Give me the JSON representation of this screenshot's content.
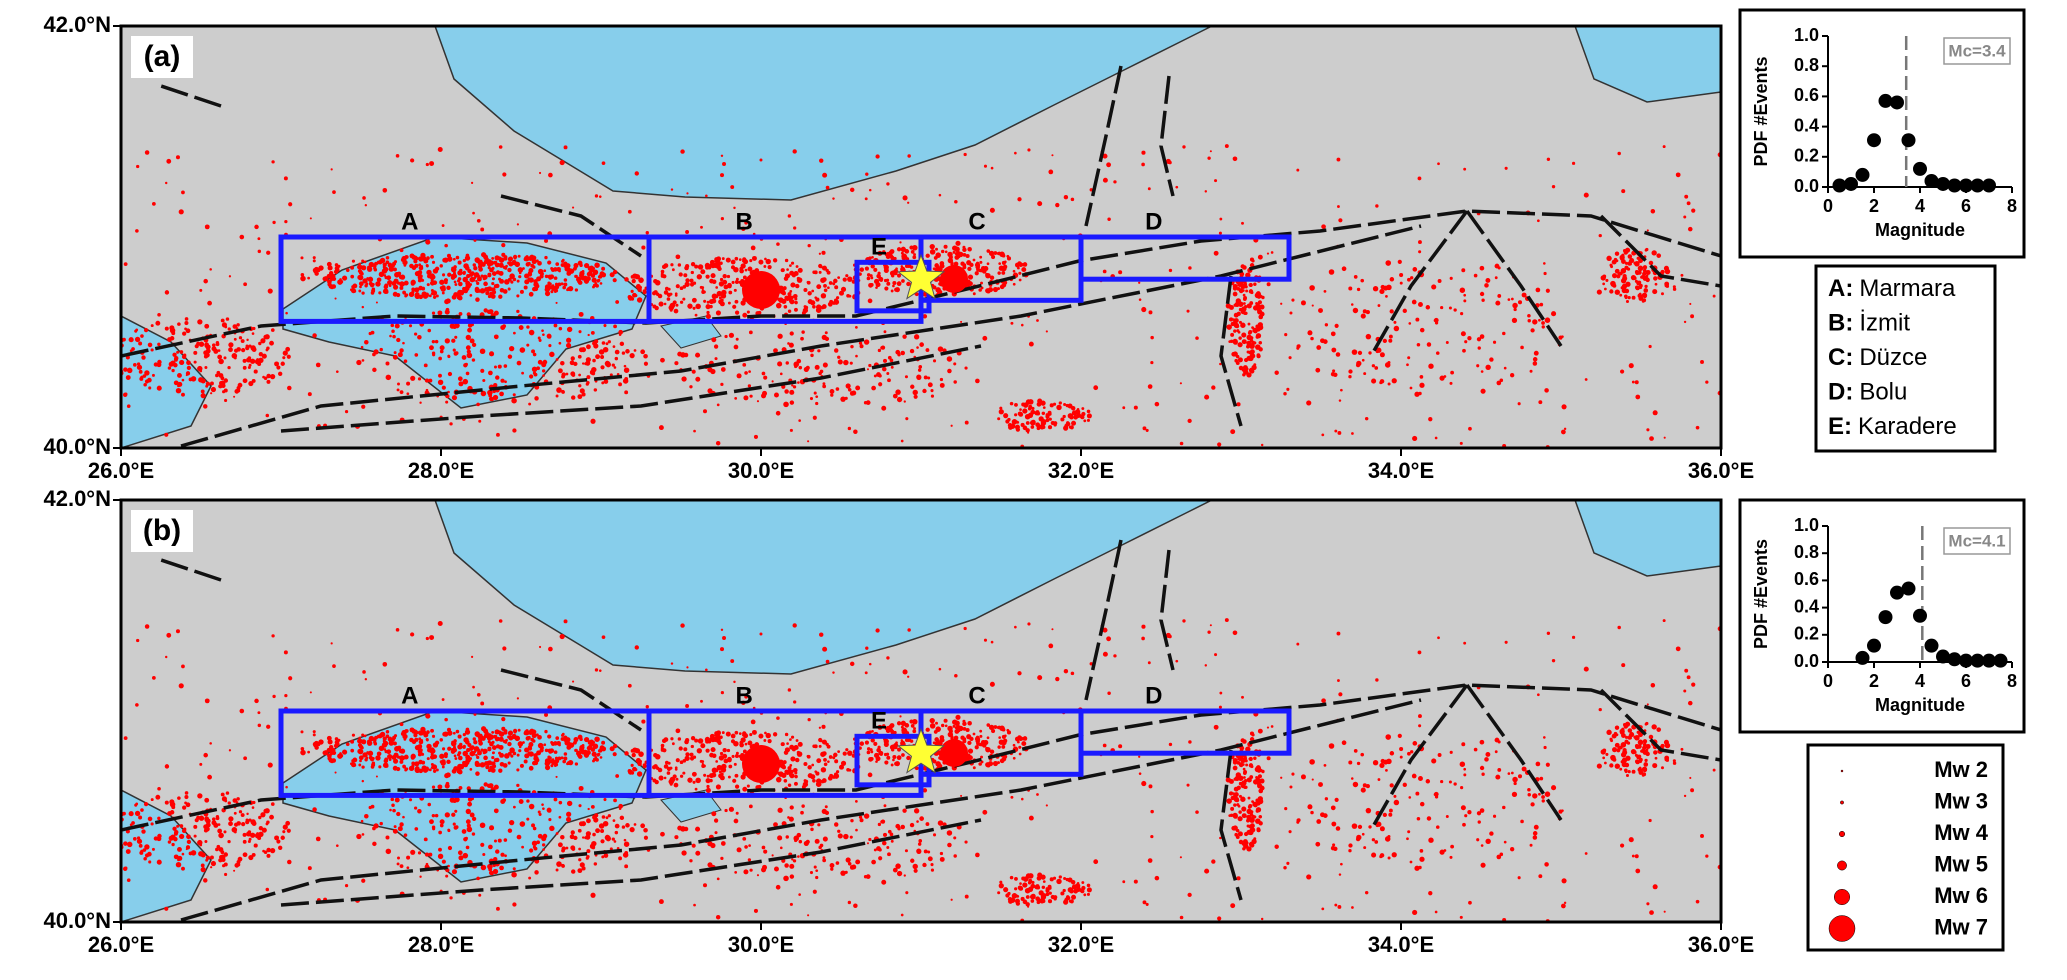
{
  "map": {
    "xlim": [
      26,
      36
    ],
    "ylim": [
      40,
      42
    ],
    "xticks": [
      {
        "value": 26,
        "label": "26.0°E"
      },
      {
        "value": 28,
        "label": "28.0°E"
      },
      {
        "value": 30,
        "label": "30.0°E"
      },
      {
        "value": 32,
        "label": "32.0°E"
      },
      {
        "value": 34,
        "label": "34.0°E"
      },
      {
        "value": 36,
        "label": "36.0°E"
      }
    ],
    "yticks": [
      {
        "value": 40,
        "label": "40.0°N"
      },
      {
        "value": 42,
        "label": "42.0°N"
      }
    ],
    "boxes": [
      {
        "name": "A",
        "lon": [
          27.0,
          29.3
        ],
        "lat": [
          40.6,
          41.0
        ]
      },
      {
        "name": "B",
        "lon": [
          29.3,
          31.0
        ],
        "lat": [
          40.6,
          41.0
        ]
      },
      {
        "name": "C",
        "lon": [
          31.0,
          32.0
        ],
        "lat": [
          40.7,
          41.0
        ]
      },
      {
        "name": "D",
        "lon": [
          32.0,
          33.3
        ],
        "lat": [
          40.8,
          41.0
        ]
      },
      {
        "name": "E",
        "lon": [
          30.6,
          31.05
        ],
        "lat": [
          40.65,
          40.88
        ]
      }
    ],
    "star": {
      "lon": 31.0,
      "lat": 40.8
    }
  },
  "panels": [
    {
      "label": "(a)",
      "inset": {
        "type": "scatter",
        "x_label": "Magnitude",
        "y_label": "PDF #Events",
        "xlim": [
          0,
          8
        ],
        "ylim": [
          0,
          1
        ],
        "xticks": [
          0,
          2,
          4,
          6,
          8
        ],
        "yticks": [
          {
            "value": 0,
            "label": "0.0"
          },
          0.2,
          0.4,
          0.6,
          0.8,
          {
            "value": 1,
            "label": "1.0"
          }
        ],
        "x": [
          0.5,
          1.0,
          1.5,
          2.0,
          2.5,
          3.0,
          3.5,
          4.0,
          4.5,
          5.0,
          5.5,
          6.0,
          6.5,
          7.0
        ],
        "values": [
          0.01,
          0.02,
          0.08,
          0.31,
          0.57,
          0.56,
          0.31,
          0.12,
          0.04,
          0.02,
          0.01,
          0.01,
          0.01,
          0.01
        ],
        "mc": {
          "value": 3.4,
          "label": "Mc=3.4"
        }
      }
    },
    {
      "label": "(b)",
      "inset": {
        "type": "scatter",
        "x_label": "Magnitude",
        "y_label": "PDF #Events",
        "xlim": [
          0,
          8
        ],
        "ylim": [
          0,
          1
        ],
        "xticks": [
          0,
          2,
          4,
          6,
          8
        ],
        "yticks": [
          {
            "value": 0,
            "label": "0.0"
          },
          0.2,
          0.4,
          0.6,
          0.8,
          {
            "value": 1,
            "label": "1.0"
          }
        ],
        "x": [
          1.5,
          2.0,
          2.5,
          3.0,
          3.5,
          4.0,
          4.5,
          5.0,
          5.5,
          6.0,
          6.5,
          7.0,
          7.5
        ],
        "values": [
          0.03,
          0.12,
          0.33,
          0.51,
          0.54,
          0.34,
          0.12,
          0.04,
          0.02,
          0.01,
          0.01,
          0.01,
          0.01
        ],
        "mc": {
          "value": 4.1,
          "label": "Mc=4.1"
        }
      }
    }
  ],
  "regions": [
    {
      "key": "A:",
      "name": "Marmara"
    },
    {
      "key": "B:",
      "name": "İzmit"
    },
    {
      "key": "C:",
      "name": "Düzce"
    },
    {
      "key": "D:",
      "name": "Bolu"
    },
    {
      "key": "E:",
      "name": "Karadere"
    }
  ],
  "magnitude_legend": [
    {
      "value": 2,
      "label": "Mw 2"
    },
    {
      "value": 3,
      "label": "Mw 3"
    },
    {
      "value": 4,
      "label": "Mw 4"
    },
    {
      "value": 5,
      "label": "Mw 5"
    },
    {
      "value": 6,
      "label": "Mw 6"
    },
    {
      "value": 7,
      "label": "Mw 7"
    }
  ]
}
